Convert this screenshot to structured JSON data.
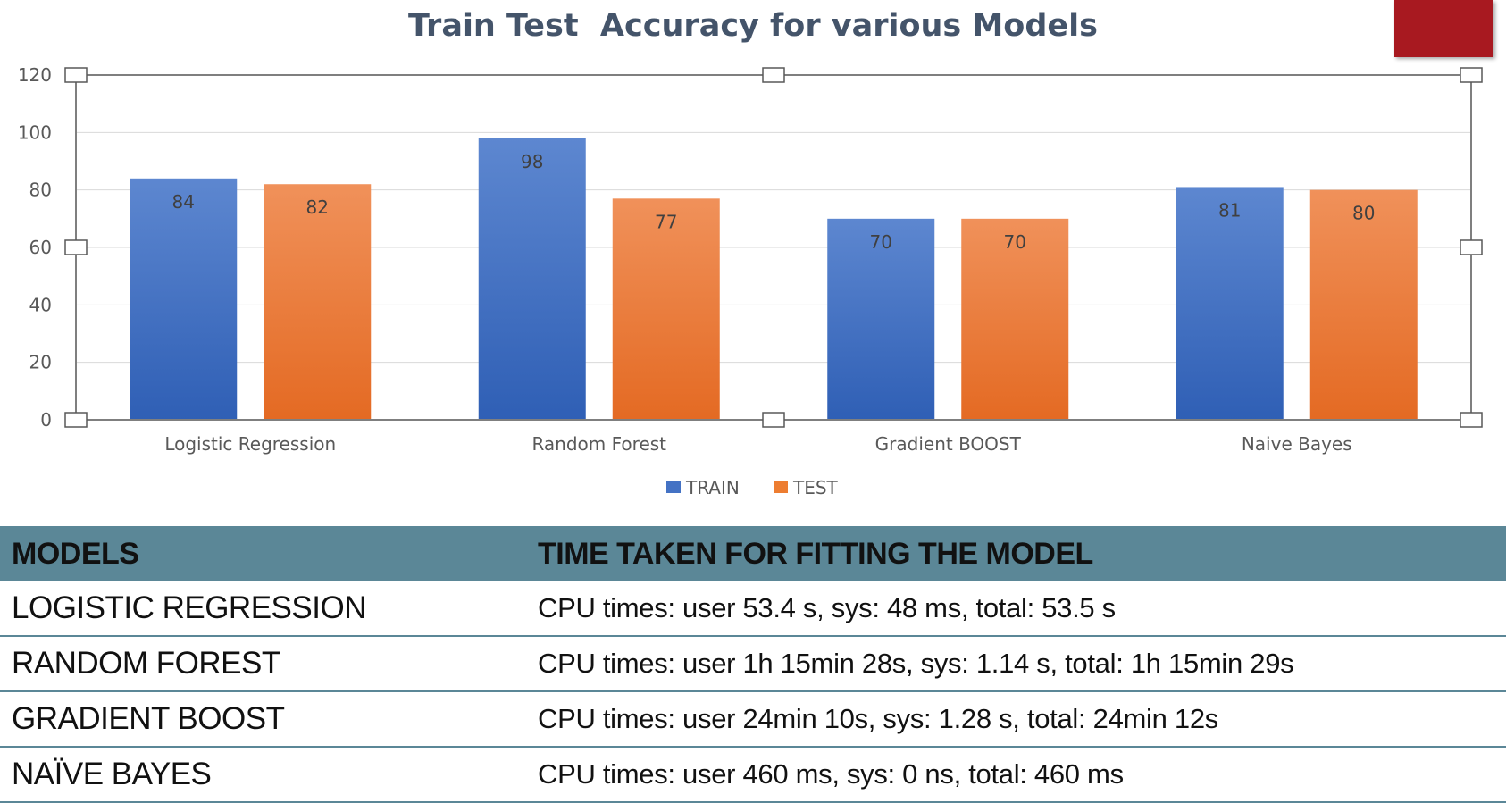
{
  "chart_data": {
    "type": "bar",
    "title": "Train Test  Accuracy for various Models",
    "categories": [
      "Logistic Regression",
      "Random Forest",
      "Gradient BOOST",
      "Naive Bayes"
    ],
    "series": [
      {
        "name": "TRAIN",
        "values": [
          84,
          98,
          70,
          81
        ],
        "color": "#4472c4"
      },
      {
        "name": "TEST",
        "values": [
          82,
          77,
          70,
          80
        ],
        "color": "#ed7d31"
      }
    ],
    "ylim": [
      0,
      120
    ],
    "yticks": [
      "0",
      "20",
      "40",
      "60",
      "80",
      "100",
      "120"
    ],
    "grid": true,
    "legend": "bottom"
  },
  "table": {
    "headers": [
      "MODELS",
      "TIME TAKEN FOR FITTING THE MODEL"
    ],
    "rows": [
      [
        "LOGISTIC REGRESSION",
        "CPU times: user 53.4 s, sys: 48 ms, total: 53.5 s"
      ],
      [
        "RANDOM FOREST",
        "CPU times: user 1h 15min 28s, sys: 1.14 s, total: 1h 15min 29s"
      ],
      [
        "GRADIENT BOOST",
        "CPU times: user 24min 10s, sys: 1.28 s, total: 24min 12s"
      ],
      [
        "NAÏVE BAYES",
        "CPU times: user 460 ms, sys: 0 ns, total: 460 ms"
      ]
    ]
  }
}
